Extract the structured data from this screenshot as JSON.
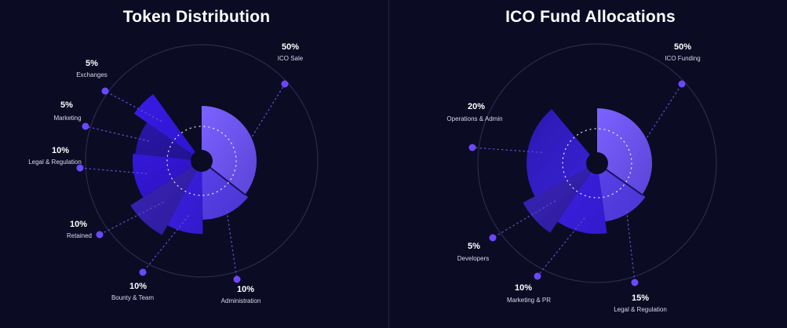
{
  "colors": {
    "background": "#0b0b24",
    "ring": "#2a2a4c",
    "hole": "#0b0b24",
    "dot": "#6b48ff",
    "leader": "#5a4cc8"
  },
  "chart_data": [
    {
      "type": "pie",
      "title": "Token Distribution",
      "slices": [
        {
          "label": "ICO Sale",
          "value": 50,
          "display": "50%",
          "color": "#7c62ff",
          "color2": "#5b44d8"
        },
        {
          "label": "Administration",
          "value": 10,
          "display": "10%",
          "color": "#5a42ea",
          "color2": "#4a34d0"
        },
        {
          "label": "Bounty & Team",
          "value": 10,
          "display": "10%",
          "color": "#3d1fe0",
          "color2": "#321acc"
        },
        {
          "label": "Retained",
          "value": 10,
          "display": "10%",
          "color": "#3a24b8",
          "color2": "#2c1a98"
        },
        {
          "label": "Legal & Regulation",
          "value": 10,
          "display": "10%",
          "color": "#3618d8",
          "color2": "#2a12c0"
        },
        {
          "label": "Marketing",
          "value": 5,
          "display": "5%",
          "color": "#2a17a8",
          "color2": "#22128e"
        },
        {
          "label": "Exchanges",
          "value": 5,
          "display": "5%",
          "color": "#3a1ce6",
          "color2": "#2c14cc"
        }
      ]
    },
    {
      "type": "pie",
      "title": "ICO Fund Allocations",
      "slices": [
        {
          "label": "ICO Funding",
          "value": 50,
          "display": "50%",
          "color": "#7c62ff",
          "color2": "#5b44d8"
        },
        {
          "label": "Legal & Regulation",
          "value": 15,
          "display": "15%",
          "color": "#5a42ea",
          "color2": "#4a34d0"
        },
        {
          "label": "Marketing & PR",
          "value": 10,
          "display": "10%",
          "color": "#3d1fe0",
          "color2": "#321acc"
        },
        {
          "label": "Developers",
          "value": 5,
          "display": "5%",
          "color": "#3a24b8",
          "color2": "#2c1a98"
        },
        {
          "label": "Operations & Admin",
          "value": 20,
          "display": "20%",
          "color": "#2c18b0",
          "color2": "#3a22d8"
        }
      ]
    }
  ]
}
